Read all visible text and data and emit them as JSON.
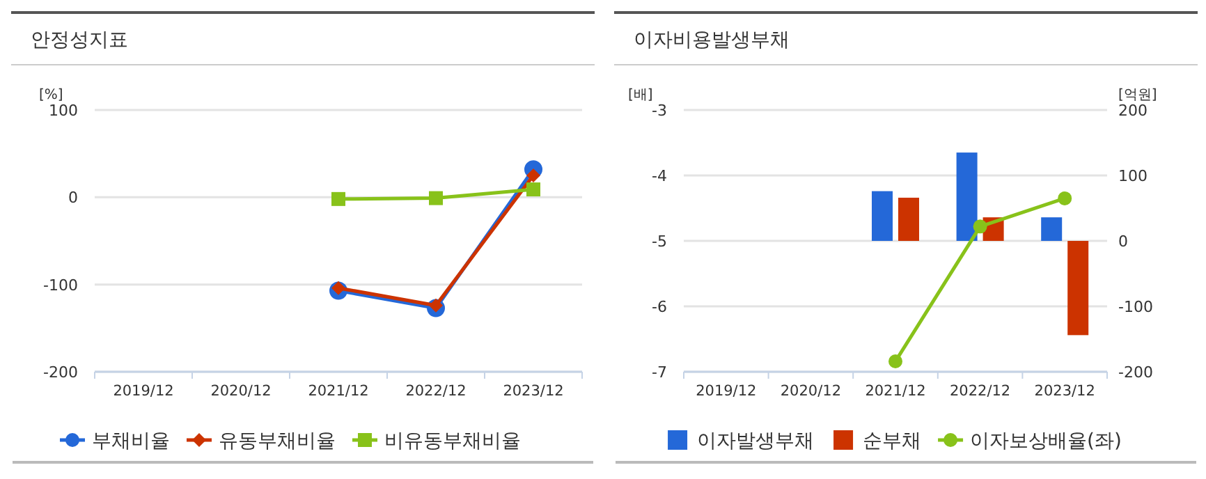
{
  "chart_data": [
    {
      "type": "line",
      "title": "안정성지표",
      "ylabel": "[%]",
      "categories": [
        "2019/12",
        "2020/12",
        "2021/12",
        "2022/12",
        "2023/12"
      ],
      "ylim": [
        -200,
        100
      ],
      "yticks": [
        -200,
        -100,
        0,
        100
      ],
      "grid": "y",
      "legend": "bottom",
      "series": [
        {
          "name": "부채비율",
          "color": "#2468d8",
          "marker": "circle",
          "values": [
            null,
            null,
            -107,
            -127,
            32
          ]
        },
        {
          "name": "유동부채비율",
          "color": "#cc3300",
          "marker": "diamond",
          "values": [
            null,
            null,
            -104,
            -124,
            25
          ]
        },
        {
          "name": "비유동부채비율",
          "color": "#88c21a",
          "marker": "square",
          "values": [
            null,
            null,
            -2,
            -1,
            9
          ]
        }
      ]
    },
    {
      "type": "bar",
      "title": "이자비용발생부채",
      "ylabel": "[배]",
      "y2label": "[억원]",
      "categories": [
        "2019/12",
        "2020/12",
        "2021/12",
        "2022/12",
        "2023/12"
      ],
      "ylim": [
        -7,
        -3
      ],
      "yticks": [
        -7,
        -6,
        -5,
        -4,
        -3
      ],
      "y2lim": [
        -200,
        200
      ],
      "y2ticks": [
        -200,
        -100,
        0,
        100,
        200
      ],
      "grid": "y",
      "legend": "bottom",
      "series": [
        {
          "name": "이자발생부채",
          "color": "#2468d8",
          "axis": "y2",
          "values": [
            null,
            null,
            76,
            135,
            36
          ]
        },
        {
          "name": "순부채",
          "color": "#cc3300",
          "axis": "y2",
          "values": [
            null,
            null,
            66,
            36,
            -144
          ]
        },
        {
          "name": "이자보상배율(좌)",
          "type": "line",
          "color": "#88c21a",
          "marker": "circle",
          "axis": "y",
          "values": [
            null,
            null,
            -6.84,
            -4.78,
            -4.35
          ]
        }
      ]
    }
  ]
}
